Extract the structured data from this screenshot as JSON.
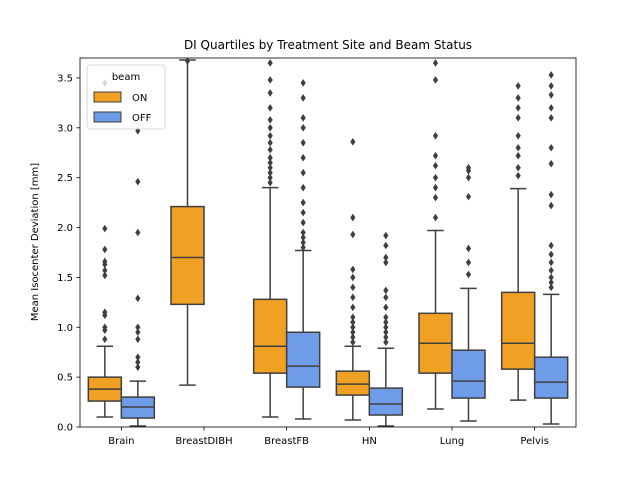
{
  "chart_data": {
    "type": "box",
    "title": "DI Quartiles by Treatment Site and Beam Status",
    "xlabel": "",
    "ylabel": "Mean Isocenter Deviation [mm]",
    "ylim": [
      0,
      3.7
    ],
    "yticks": [
      "0.0",
      "0.5",
      "1.0",
      "1.5",
      "2.0",
      "2.5",
      "3.0",
      "3.5"
    ],
    "categories": [
      "Brain",
      "BreastDIBH",
      "BreastFB",
      "HN",
      "Lung",
      "Pelvis"
    ],
    "grid": false,
    "legend": {
      "title": "beam",
      "placement": "top-left"
    },
    "series": [
      {
        "name": "ON",
        "color": "#f0a023",
        "boxes": [
          {
            "category": "Brain",
            "whisker_low": 0.1,
            "q1": 0.26,
            "median": 0.38,
            "q3": 0.5,
            "whisker_high": 0.81,
            "outliers": [
              0.88,
              0.97,
              1.0,
              1.12,
              1.15,
              1.52,
              1.57,
              1.63,
              1.66,
              1.78,
              1.99,
              3.45
            ]
          },
          {
            "category": "BreastDIBH",
            "whisker_low": 0.42,
            "q1": 1.23,
            "median": 1.7,
            "q3": 2.21,
            "whisker_high": 3.68,
            "outliers": [
              3.67
            ]
          },
          {
            "category": "BreastFB",
            "whisker_low": 0.1,
            "q1": 0.54,
            "median": 0.81,
            "q3": 1.28,
            "whisker_high": 2.4,
            "outliers": [
              2.45,
              2.5,
              2.55,
              2.6,
              2.65,
              2.7,
              2.78,
              2.85,
              2.92,
              3.0,
              3.08,
              3.2,
              3.35,
              3.48,
              3.65
            ]
          },
          {
            "category": "HN",
            "whisker_low": 0.07,
            "q1": 0.32,
            "median": 0.43,
            "q3": 0.56,
            "whisker_high": 0.81,
            "outliers": [
              0.85,
              0.9,
              0.95,
              1.0,
              1.05,
              1.1,
              1.2,
              1.3,
              1.4,
              1.5,
              1.58,
              1.93,
              2.1,
              2.86
            ]
          },
          {
            "category": "Lung",
            "whisker_low": 0.18,
            "q1": 0.54,
            "median": 0.84,
            "q3": 1.14,
            "whisker_high": 1.97,
            "outliers": [
              2.1,
              2.3,
              2.4,
              2.5,
              2.62,
              2.72,
              2.92,
              3.48,
              3.65
            ]
          },
          {
            "category": "Pelvis",
            "whisker_low": 0.27,
            "q1": 0.58,
            "median": 0.84,
            "q3": 1.35,
            "whisker_high": 2.39,
            "outliers": [
              2.52,
              2.6,
              2.72,
              2.8,
              2.92,
              3.1,
              3.2,
              3.3,
              3.42
            ]
          }
        ]
      },
      {
        "name": "OFF",
        "color": "#6f9ce8",
        "boxes": [
          {
            "category": "Brain",
            "whisker_low": 0.01,
            "q1": 0.09,
            "median": 0.2,
            "q3": 0.3,
            "whisker_high": 0.46,
            "outliers": [
              0.6,
              0.65,
              0.7,
              0.88,
              0.95,
              1.0,
              1.29,
              1.95,
              2.46,
              2.97
            ]
          },
          {
            "category": "BreastDIBH",
            "empty": true
          },
          {
            "category": "BreastFB",
            "whisker_low": 0.08,
            "q1": 0.4,
            "median": 0.61,
            "q3": 0.95,
            "whisker_high": 1.77,
            "outliers": [
              1.8,
              1.85,
              1.9,
              1.95,
              2.05,
              2.15,
              2.25,
              2.4,
              2.55,
              2.7,
              2.85,
              3.0,
              3.1,
              3.3,
              3.45
            ]
          },
          {
            "category": "HN",
            "whisker_low": 0.01,
            "q1": 0.12,
            "median": 0.23,
            "q3": 0.39,
            "whisker_high": 0.79,
            "outliers": [
              0.85,
              0.9,
              0.95,
              1.0,
              1.05,
              1.1,
              1.2,
              1.3,
              1.37,
              1.65,
              1.7,
              1.82,
              1.92
            ]
          },
          {
            "category": "Lung",
            "whisker_low": 0.06,
            "q1": 0.29,
            "median": 0.46,
            "q3": 0.77,
            "whisker_high": 1.39,
            "outliers": [
              1.53,
              1.65,
              1.79,
              2.31,
              2.5,
              2.57,
              2.6
            ]
          },
          {
            "category": "Pelvis",
            "whisker_low": 0.03,
            "q1": 0.29,
            "median": 0.45,
            "q3": 0.7,
            "whisker_high": 1.33,
            "outliers": [
              1.4,
              1.45,
              1.5,
              1.57,
              1.65,
              1.73,
              1.82,
              2.22,
              2.33,
              2.64,
              2.8,
              3.1,
              3.2,
              3.33,
              3.42,
              3.53
            ]
          }
        ]
      }
    ]
  }
}
